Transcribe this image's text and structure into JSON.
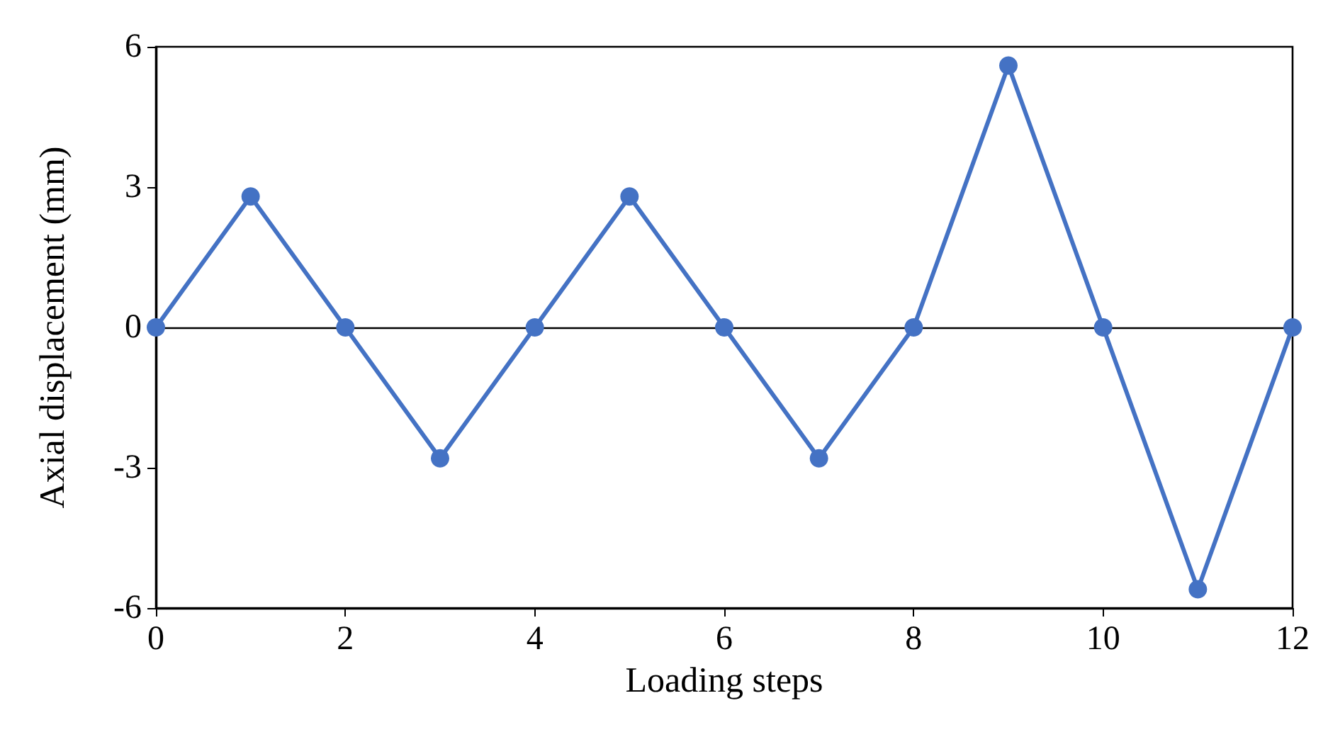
{
  "chart_data": {
    "type": "line",
    "xlabel": "Loading steps",
    "ylabel": "Axial displacement (mm)",
    "x": [
      0,
      1,
      2,
      3,
      4,
      5,
      6,
      7,
      8,
      9,
      10,
      11,
      12
    ],
    "series": [
      {
        "color": "#4472c4",
        "values": [
          0,
          2.8,
          0,
          -2.8,
          0,
          2.8,
          0,
          -2.8,
          0,
          5.6,
          0,
          -5.6,
          0
        ]
      }
    ],
    "xlim": [
      0,
      12
    ],
    "xticks": [
      0,
      2,
      4,
      6,
      8,
      10,
      12
    ],
    "ylim": [
      -6,
      6
    ],
    "yticks": [
      -6,
      -3,
      0,
      3,
      6
    ],
    "ref_lines": [
      {
        "axis": "y",
        "value": 0,
        "color": "#000000"
      }
    ],
    "marker": "circle",
    "line_style": "solid"
  }
}
